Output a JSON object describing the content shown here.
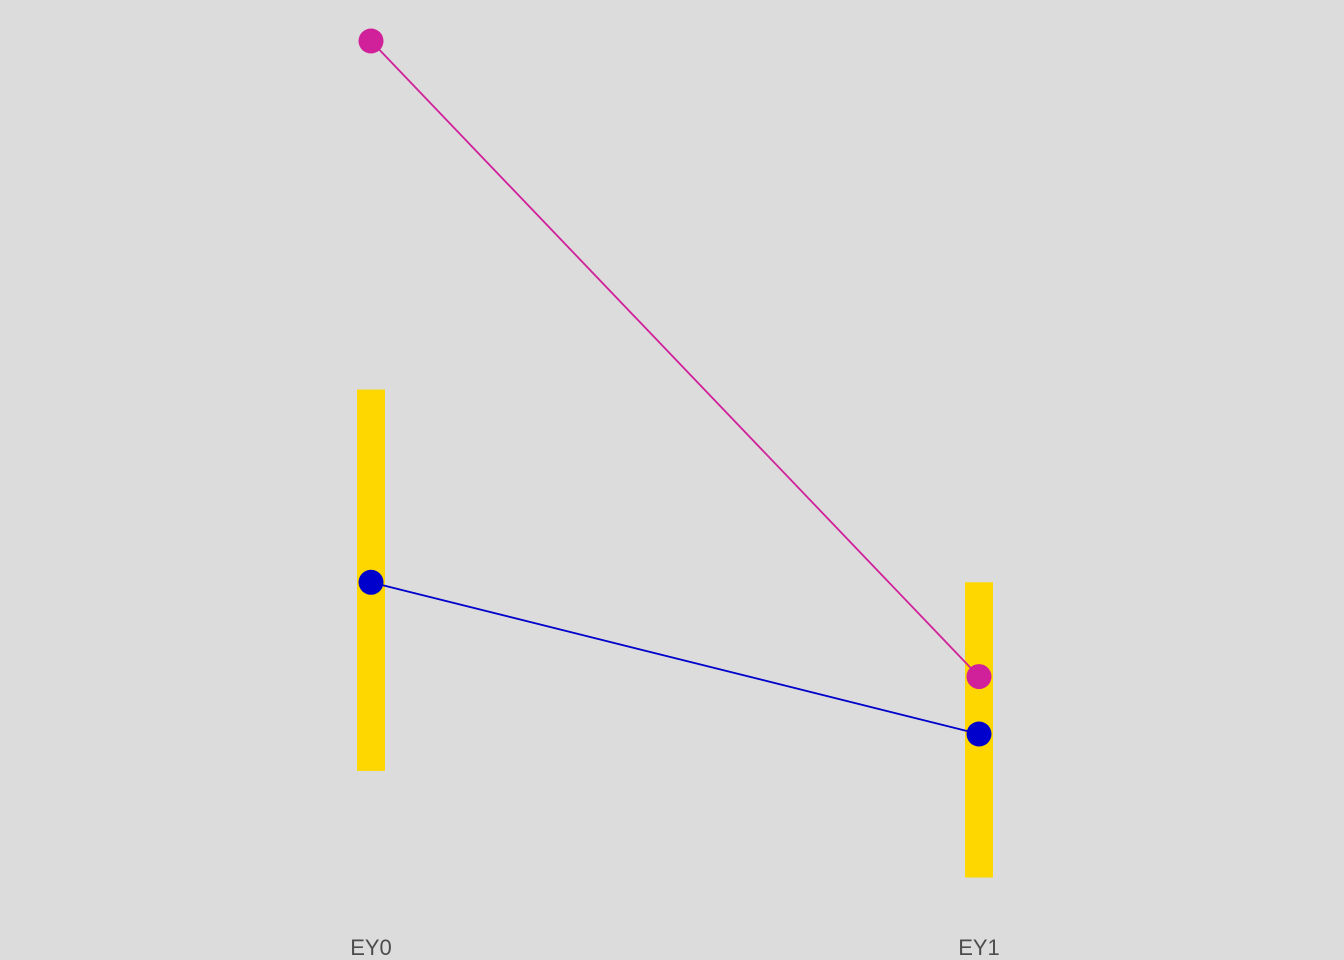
{
  "chart_data": {
    "type": "line",
    "categories": [
      "EY0",
      "EY1"
    ],
    "ylim": [
      -0.9,
      1.4
    ],
    "grid": false,
    "background": "#dcdcdc",
    "series": [
      {
        "values": [
          1.35,
          -0.2
        ],
        "color": "#d0209a"
      },
      {
        "values": [
          0.03,
          -0.34
        ],
        "color": "#0000cc"
      }
    ],
    "intervals": [
      {
        "category": "EY0",
        "low": -0.43,
        "high": 0.5
      },
      {
        "category": "EY1",
        "low": -0.69,
        "high": 0.03
      }
    ],
    "interval_color": "#ffd700"
  }
}
